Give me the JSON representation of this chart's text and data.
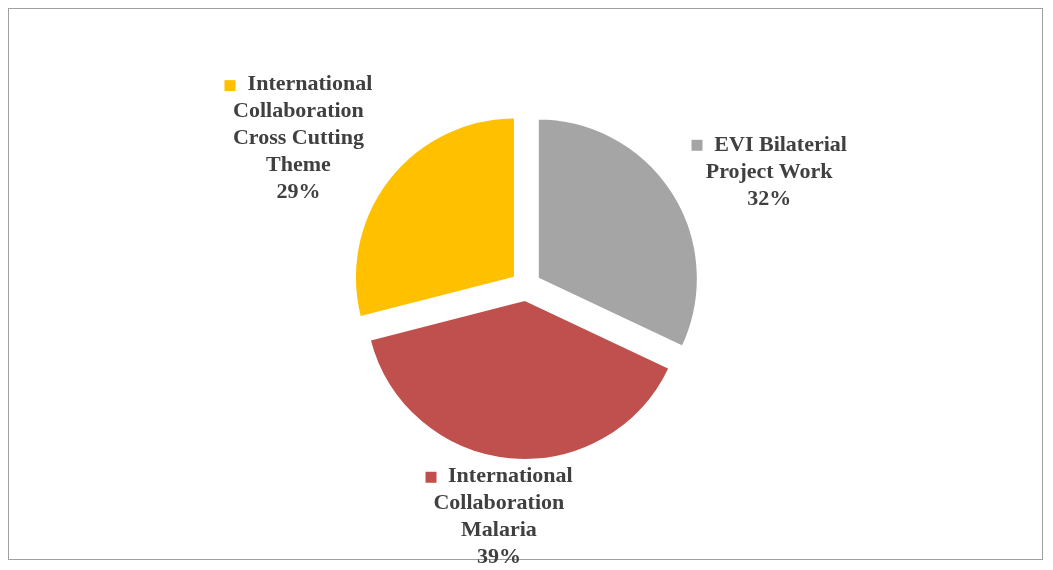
{
  "chart_data": {
    "type": "pie",
    "categories": [
      "EVI Bilaterial Project Work",
      "International Collaboration Malaria",
      "International Collaboration Cross Cutting Theme"
    ],
    "values": [
      32,
      39,
      29
    ],
    "value_labels": [
      "32%",
      "39%",
      "29%"
    ],
    "colors": [
      "#a5a5a5",
      "#c0504d",
      "#ffc000"
    ],
    "legend": "bottom right"
  }
}
